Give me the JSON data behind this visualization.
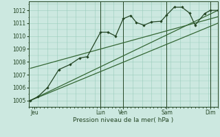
{
  "bg_color": "#cce8e0",
  "grid_color": "#99ccbb",
  "line_color": "#336633",
  "dark_line_color": "#224422",
  "xlim": [
    0,
    100
  ],
  "ylim": [
    1004.5,
    1012.7
  ],
  "yticks": [
    1005,
    1006,
    1007,
    1008,
    1009,
    1010,
    1011,
    1012
  ],
  "xtick_positions": [
    3,
    38,
    50,
    73,
    96
  ],
  "xtick_labels": [
    "Jeu",
    "Lun",
    "Ven",
    "Sam",
    "Dim"
  ],
  "xlabel": "Pression niveau de la mer( hPa )",
  "series1_x": [
    1,
    5,
    10,
    16,
    22,
    27,
    31,
    38,
    42,
    46,
    50,
    54,
    57,
    61,
    65,
    70,
    73,
    77,
    81,
    85,
    88,
    93,
    96,
    100
  ],
  "series1_y": [
    1005.0,
    1005.3,
    1006.0,
    1007.4,
    1007.8,
    1008.3,
    1008.4,
    1010.3,
    1010.3,
    1010.0,
    1011.35,
    1011.6,
    1011.05,
    1010.85,
    1011.1,
    1011.15,
    1011.65,
    1012.25,
    1012.25,
    1011.8,
    1010.85,
    1011.75,
    1012.0,
    1012.0
  ],
  "line2_x": [
    1,
    100
  ],
  "line2_y": [
    1005.0,
    1012.0
  ],
  "line3_x": [
    1,
    100
  ],
  "line3_y": [
    1005.0,
    1011.0
  ],
  "line4_x": [
    1,
    100
  ],
  "line4_y": [
    1007.5,
    1011.5
  ],
  "vline_positions": [
    38,
    50,
    73,
    96
  ]
}
